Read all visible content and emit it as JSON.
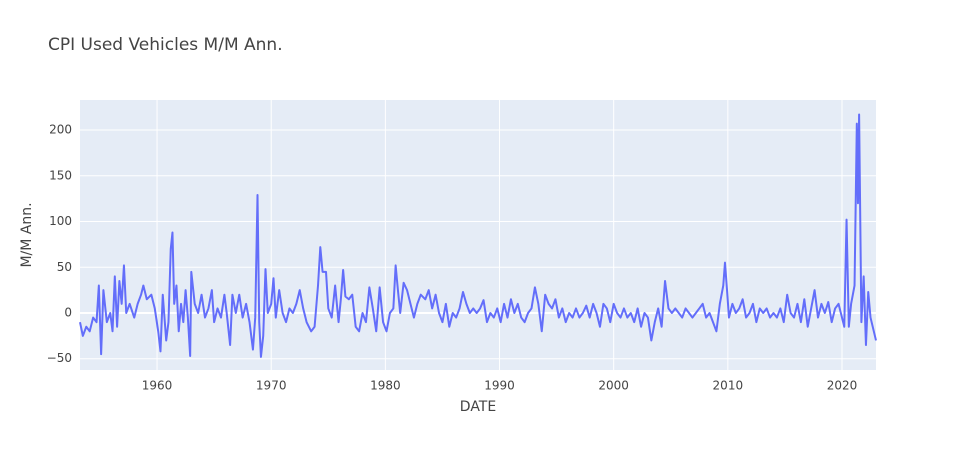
{
  "chart_data": {
    "type": "line",
    "title": "CPI Used Vehicles M/M Ann.",
    "xlabel": "DATE",
    "ylabel": "M/M Ann.",
    "color": "#636efa",
    "grid": true,
    "zeroline": true,
    "xlim": [
      1953.25,
      2022.98
    ],
    "ylim": [
      -62.3,
      232.8
    ],
    "xticks": [
      1960,
      1970,
      1980,
      1990,
      2000,
      2010,
      2020
    ],
    "yticks": [
      {
        "value": -50,
        "label": "−50"
      },
      0,
      50,
      100,
      150,
      200
    ],
    "x": [
      1953.25,
      1953.5,
      1953.8,
      1954.1,
      1954.4,
      1954.7,
      1954.9,
      1955.1,
      1955.3,
      1955.6,
      1955.9,
      1956.1,
      1956.3,
      1956.5,
      1956.7,
      1956.9,
      1957.1,
      1957.3,
      1957.6,
      1958.0,
      1958.3,
      1958.6,
      1958.8,
      1959.1,
      1959.5,
      1959.8,
      1960.1,
      1960.3,
      1960.5,
      1960.8,
      1961.0,
      1961.2,
      1961.35,
      1961.5,
      1961.7,
      1961.9,
      1962.1,
      1962.3,
      1962.5,
      1962.7,
      1962.9,
      1963.0,
      1963.3,
      1963.6,
      1963.9,
      1964.2,
      1964.5,
      1964.8,
      1965.0,
      1965.3,
      1965.6,
      1965.9,
      1966.1,
      1966.4,
      1966.6,
      1966.9,
      1967.2,
      1967.5,
      1967.8,
      1968.1,
      1968.4,
      1968.6,
      1968.8,
      1968.95,
      1969.1,
      1969.3,
      1969.5,
      1969.7,
      1970.0,
      1970.2,
      1970.4,
      1970.7,
      1971.0,
      1971.3,
      1971.6,
      1971.9,
      1972.2,
      1972.5,
      1972.8,
      1973.1,
      1973.5,
      1973.8,
      1974.1,
      1974.3,
      1974.5,
      1974.8,
      1975.0,
      1975.3,
      1975.6,
      1975.9,
      1976.1,
      1976.3,
      1976.5,
      1976.8,
      1977.1,
      1977.4,
      1977.7,
      1978.0,
      1978.3,
      1978.6,
      1978.9,
      1979.2,
      1979.5,
      1979.8,
      1980.1,
      1980.4,
      1980.7,
      1980.9,
      1981.1,
      1981.3,
      1981.6,
      1981.9,
      1982.2,
      1982.5,
      1982.8,
      1983.1,
      1983.5,
      1983.8,
      1984.1,
      1984.4,
      1984.7,
      1985.0,
      1985.3,
      1985.6,
      1985.9,
      1986.2,
      1986.5,
      1986.8,
      1987.1,
      1987.4,
      1987.7,
      1988.0,
      1988.3,
      1988.6,
      1988.9,
      1989.2,
      1989.5,
      1989.8,
      1990.1,
      1990.4,
      1990.7,
      1991.0,
      1991.3,
      1991.6,
      1991.9,
      1992.2,
      1992.5,
      1992.8,
      1993.1,
      1993.4,
      1993.7,
      1994.0,
      1994.3,
      1994.6,
      1994.9,
      1995.2,
      1995.5,
      1995.8,
      1996.1,
      1996.4,
      1996.7,
      1997.0,
      1997.3,
      1997.6,
      1997.9,
      1998.2,
      1998.5,
      1998.8,
      1999.1,
      1999.4,
      1999.7,
      2000.0,
      2000.3,
      2000.6,
      2000.9,
      2001.2,
      2001.5,
      2001.8,
      2002.1,
      2002.4,
      2002.7,
      2003.0,
      2003.3,
      2003.6,
      2003.9,
      2004.2,
      2004.5,
      2004.8,
      2005.1,
      2005.4,
      2005.7,
      2006.0,
      2006.3,
      2006.6,
      2006.9,
      2007.2,
      2007.5,
      2007.8,
      2008.1,
      2008.4,
      2008.7,
      2009.0,
      2009.3,
      2009.6,
      2009.75,
      2009.9,
      2010.1,
      2010.4,
      2010.7,
      2011.0,
      2011.3,
      2011.6,
      2011.9,
      2012.2,
      2012.5,
      2012.8,
      2013.1,
      2013.4,
      2013.7,
      2014.0,
      2014.3,
      2014.6,
      2014.9,
      2015.2,
      2015.5,
      2015.8,
      2016.1,
      2016.4,
      2016.7,
      2017.0,
      2017.3,
      2017.6,
      2017.9,
      2018.2,
      2018.5,
      2018.8,
      2019.1,
      2019.4,
      2019.7,
      2020.0,
      2020.2,
      2020.4,
      2020.6,
      2020.8,
      2021.1,
      2021.3,
      2021.4,
      2021.5,
      2021.7,
      2021.9,
      2022.1,
      2022.3,
      2022.5,
      2022.98
    ],
    "values": [
      -10,
      -25,
      -15,
      -20,
      -5,
      -10,
      30,
      -45,
      25,
      -10,
      0,
      -20,
      40,
      -15,
      35,
      10,
      52,
      0,
      10,
      -5,
      10,
      20,
      30,
      15,
      20,
      5,
      -20,
      -42,
      20,
      -30,
      -10,
      70,
      88,
      10,
      30,
      -20,
      10,
      -10,
      25,
      -5,
      -47,
      45,
      10,
      0,
      20,
      -5,
      5,
      25,
      -10,
      5,
      -5,
      20,
      0,
      -35,
      20,
      0,
      20,
      -5,
      10,
      -10,
      -40,
      -5,
      129,
      -10,
      -48,
      -25,
      48,
      0,
      10,
      38,
      -5,
      25,
      0,
      -10,
      5,
      0,
      10,
      25,
      5,
      -10,
      -20,
      -15,
      30,
      72,
      45,
      45,
      5,
      -5,
      30,
      -10,
      15,
      47,
      18,
      15,
      20,
      -15,
      -20,
      0,
      -10,
      28,
      5,
      -20,
      28,
      -10,
      -20,
      0,
      5,
      52,
      25,
      0,
      33,
      25,
      10,
      -5,
      10,
      20,
      15,
      25,
      5,
      20,
      0,
      -10,
      10,
      -15,
      0,
      -5,
      5,
      23,
      10,
      0,
      5,
      0,
      5,
      14,
      -10,
      0,
      -5,
      5,
      -10,
      10,
      -5,
      15,
      0,
      10,
      -5,
      -10,
      0,
      5,
      28,
      10,
      -20,
      20,
      10,
      5,
      15,
      -5,
      5,
      -10,
      0,
      -5,
      5,
      -5,
      0,
      8,
      -5,
      10,
      0,
      -15,
      10,
      5,
      -10,
      10,
      0,
      -5,
      5,
      -5,
      0,
      -10,
      5,
      -15,
      0,
      -5,
      -30,
      -10,
      5,
      -15,
      35,
      5,
      0,
      5,
      0,
      -5,
      5,
      0,
      -5,
      0,
      5,
      10,
      -5,
      0,
      -10,
      -20,
      10,
      30,
      55,
      30,
      -5,
      10,
      0,
      5,
      15,
      -5,
      0,
      10,
      -10,
      5,
      0,
      5,
      -5,
      0,
      -5,
      5,
      -10,
      20,
      0,
      -5,
      10,
      -10,
      15,
      -15,
      5,
      25,
      -5,
      10,
      0,
      12,
      -10,
      5,
      10,
      -5,
      -15,
      102,
      -15,
      10,
      30,
      207,
      120,
      217,
      -10,
      40,
      -35,
      23,
      -5,
      -30
    ]
  }
}
